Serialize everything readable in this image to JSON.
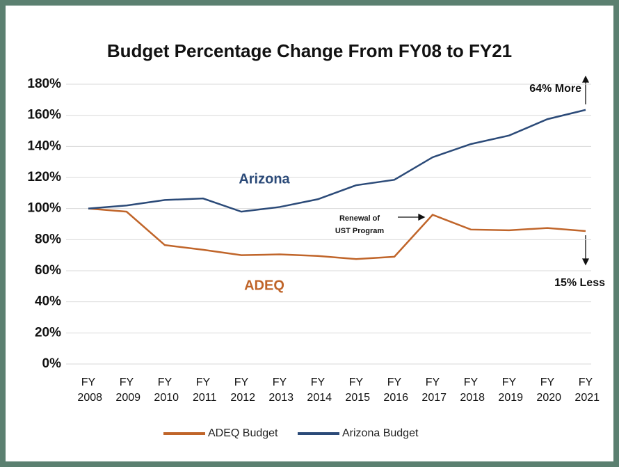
{
  "chart_data": {
    "type": "line",
    "title": "Budget Percentage Change From FY08 to FY21",
    "categories": [
      "FY 2008",
      "FY 2009",
      "FY 2010",
      "FY 2011",
      "FY 2012",
      "FY 2013",
      "FY 2014",
      "FY 2015",
      "FY 2016",
      "FY 2017",
      "FY 2018",
      "FY 2019",
      "FY 2020",
      "FY 2021"
    ],
    "series": [
      {
        "name": "ADEQ Budget",
        "color": "#c0652a",
        "values": [
          100,
          98,
          76.5,
          73.5,
          70,
          70.5,
          69.5,
          67.5,
          69,
          96,
          86.5,
          86,
          87.5,
          85.5
        ]
      },
      {
        "name": "Arizona Budget",
        "color": "#2b4a78",
        "values": [
          100,
          102,
          105.5,
          106.5,
          98,
          101,
          106,
          115,
          118.5,
          133,
          141.5,
          147,
          157.5,
          163.5
        ]
      }
    ],
    "ylim": [
      0,
      180
    ],
    "yticks": [
      {
        "value": 0,
        "label": "0%"
      },
      {
        "value": 20,
        "label": "20%"
      },
      {
        "value": 40,
        "label": "40%"
      },
      {
        "value": 60,
        "label": "60%"
      },
      {
        "value": 80,
        "label": "80%"
      },
      {
        "value": 100,
        "label": "100%"
      },
      {
        "value": 120,
        "label": "120%"
      },
      {
        "value": 140,
        "label": "140%"
      },
      {
        "value": 160,
        "label": "160%"
      },
      {
        "value": 180,
        "label": "180%"
      }
    ],
    "grid": true,
    "legend": "bottom",
    "annotations": [
      "Arizona",
      "ADEQ",
      "64% More",
      "15% Less",
      "Renewal of",
      "UST Program"
    ]
  }
}
